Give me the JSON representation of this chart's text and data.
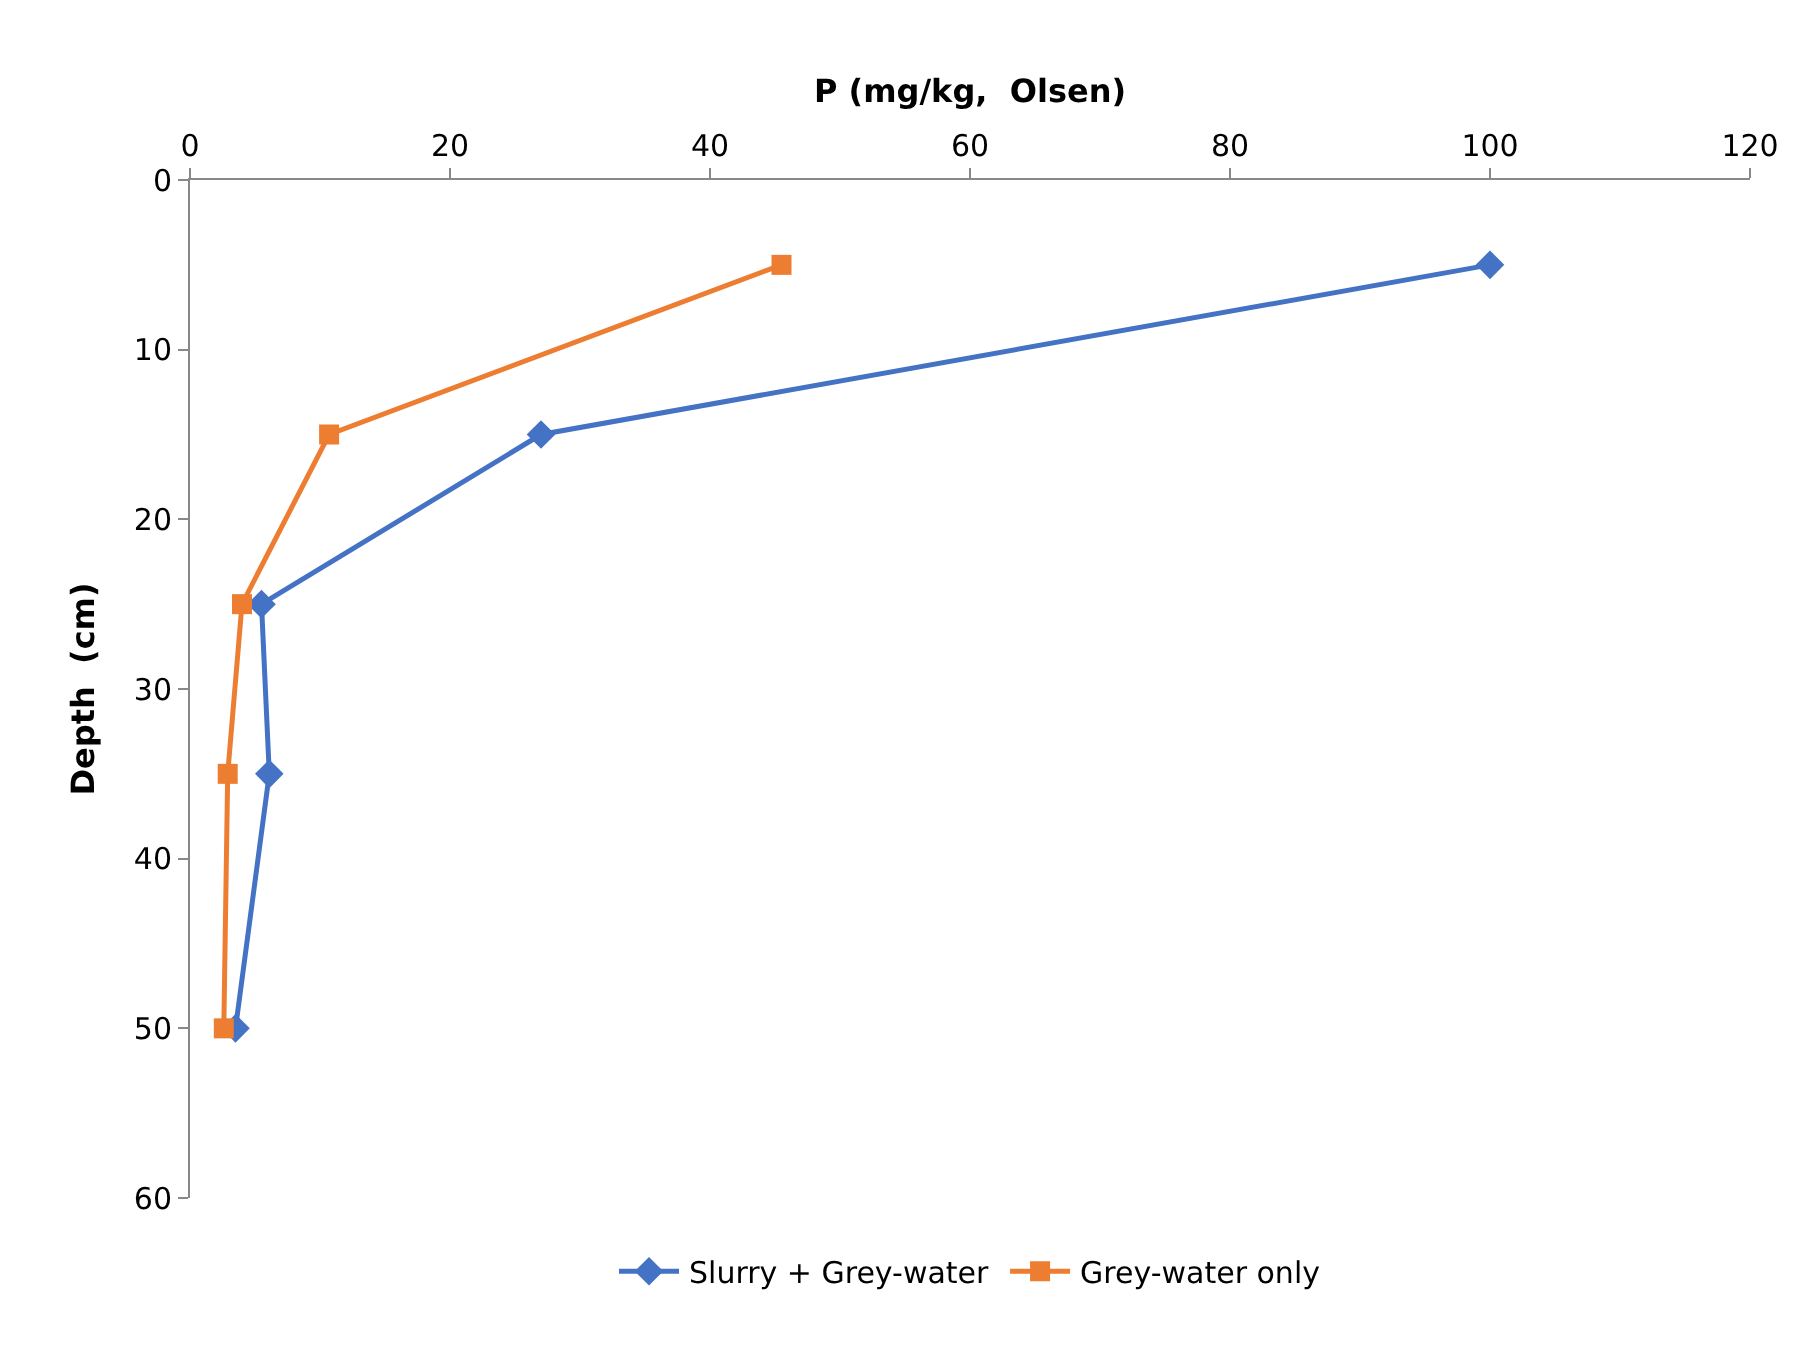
{
  "chart_data": {
    "type": "line",
    "xlabel": "P (mg/kg,  Olsen)",
    "ylabel": "Depth  (cm)",
    "xlim": [
      0,
      120
    ],
    "xticks": [
      0,
      20,
      40,
      60,
      80,
      100,
      120
    ],
    "ylim": [
      60,
      0
    ],
    "yticks": [
      0,
      10,
      20,
      30,
      40,
      50,
      60
    ],
    "legend": "bottom",
    "line_style": "solid",
    "series": [
      {
        "name": "Slurry + Grey-water",
        "color": "#4472c4",
        "marker": "diamond",
        "x": [
          100,
          27,
          5.5,
          6.1,
          3.5
        ],
        "values": [
          5,
          15,
          25,
          35,
          50
        ]
      },
      {
        "name": "Grey-water only",
        "color": "#ed7d31",
        "marker": "square",
        "x": [
          45.5,
          10.7,
          4.0,
          2.9,
          2.6
        ],
        "values": [
          5,
          15,
          25,
          35,
          50
        ]
      }
    ]
  }
}
